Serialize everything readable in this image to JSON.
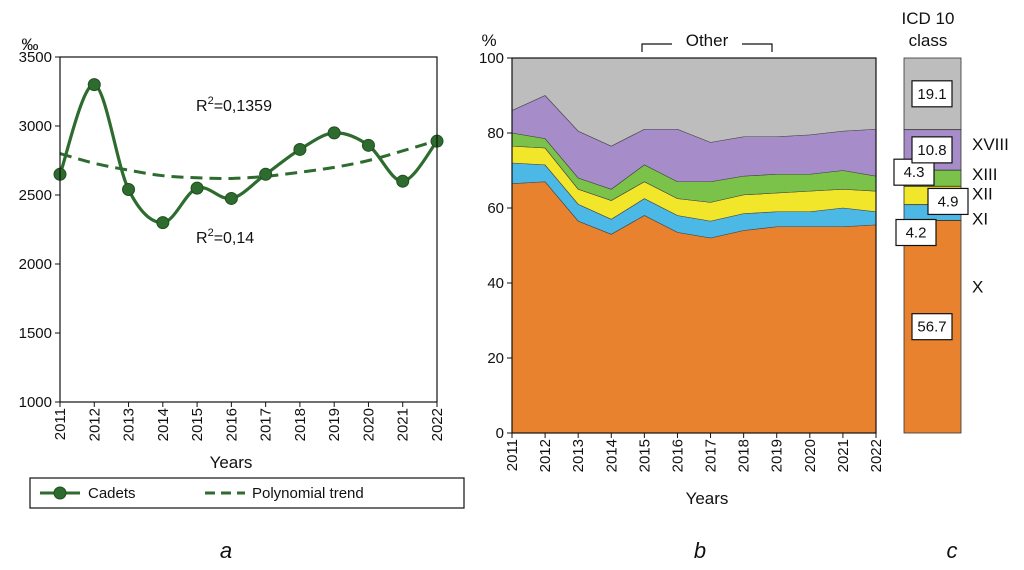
{
  "chart_data": [
    {
      "panel": "a",
      "type": "line",
      "ylabel": "‰",
      "xlabel": "Years",
      "ylim": [
        1000,
        3500
      ],
      "yticks": [
        1000,
        1500,
        2000,
        2500,
        3000,
        3500
      ],
      "x": [
        "2011",
        "2012",
        "2013",
        "2014",
        "2015",
        "2016",
        "2017",
        "2018",
        "2019",
        "2020",
        "2021",
        "2022"
      ],
      "series": [
        {
          "name": "Cadets",
          "values": [
            2650,
            3300,
            2540,
            2300,
            2550,
            2475,
            2650,
            2830,
            2950,
            2860,
            2600,
            2890
          ],
          "color": "#2e6b2e"
        },
        {
          "name": "Polynomial trend",
          "values": [
            2800,
            2730,
            2680,
            2640,
            2625,
            2620,
            2635,
            2665,
            2700,
            2750,
            2820,
            2895
          ],
          "color": "#2e6b2e",
          "style": "dashed"
        }
      ],
      "annotations": [
        {
          "base": "R",
          "sup": "2",
          "text": "=0,1359"
        },
        {
          "base": "R",
          "sup": "2",
          "text": "=0,14"
        }
      ],
      "legend": [
        "Cadets",
        "Polynomial trend"
      ]
    },
    {
      "panel": "b",
      "type": "area",
      "ylabel": "%",
      "xlabel": "Years",
      "ylim": [
        0,
        100
      ],
      "yticks": [
        0,
        20,
        40,
        60,
        80,
        100
      ],
      "x": [
        "2011",
        "2012",
        "2013",
        "2014",
        "2015",
        "2016",
        "2017",
        "2018",
        "2019",
        "2020",
        "2021",
        "2022"
      ],
      "bracket_label": "Other",
      "series": [
        {
          "name": "X",
          "color": "#e8822f",
          "values": [
            66.5,
            67,
            56.5,
            53,
            58,
            53.5,
            52,
            54,
            55,
            55,
            55,
            55.5
          ]
        },
        {
          "name": "XI",
          "color": "#4cb8e6",
          "values": [
            5.5,
            4.5,
            4.5,
            4,
            4.5,
            4.5,
            4.5,
            4.5,
            4,
            4,
            5,
            3.5
          ]
        },
        {
          "name": "XII",
          "color": "#f2e62b",
          "values": [
            4.5,
            4.5,
            4,
            5,
            4.5,
            4.5,
            5,
            5,
            5,
            5.5,
            5,
            5.5
          ]
        },
        {
          "name": "XIII",
          "color": "#7bc24a",
          "values": [
            3.5,
            2.5,
            3,
            3,
            4.5,
            4.5,
            5.5,
            5,
            5,
            4.5,
            5,
            4
          ]
        },
        {
          "name": "XVIII",
          "color": "#a68cc8",
          "values": [
            6,
            11.5,
            12.5,
            11.5,
            9.5,
            14,
            10.5,
            10.5,
            10,
            10.5,
            10.5,
            12.5
          ]
        },
        {
          "name": "Other",
          "color": "#bdbdbd",
          "values": [
            14,
            10,
            19.5,
            23.5,
            19,
            19,
            22.5,
            21,
            21,
            20.5,
            19.5,
            19
          ]
        }
      ]
    },
    {
      "panel": "c",
      "type": "bar",
      "title_line1": "ICD 10",
      "title_line2": "class",
      "segments": [
        {
          "name": "X",
          "label": "X",
          "value": 56.7,
          "display": "56.7",
          "color": "#e8822f"
        },
        {
          "name": "XI",
          "label": "XI",
          "value": 4.2,
          "display": "4.2",
          "color": "#4cb8e6"
        },
        {
          "name": "XII",
          "label": "XII",
          "value": 4.9,
          "display": "4.9",
          "color": "#f2e62b"
        },
        {
          "name": "XIII",
          "label": "XIII",
          "value": 4.3,
          "display": "4.3",
          "color": "#7bc24a"
        },
        {
          "name": "XVIII",
          "label": "XVIII",
          "value": 10.8,
          "display": "10.8",
          "color": "#a68cc8"
        },
        {
          "name": "Other",
          "label": "",
          "value": 19.1,
          "display": "19.1",
          "color": "#bdbdbd"
        }
      ]
    }
  ],
  "panel_letters": {
    "a": "a",
    "b": "b",
    "c": "c"
  }
}
